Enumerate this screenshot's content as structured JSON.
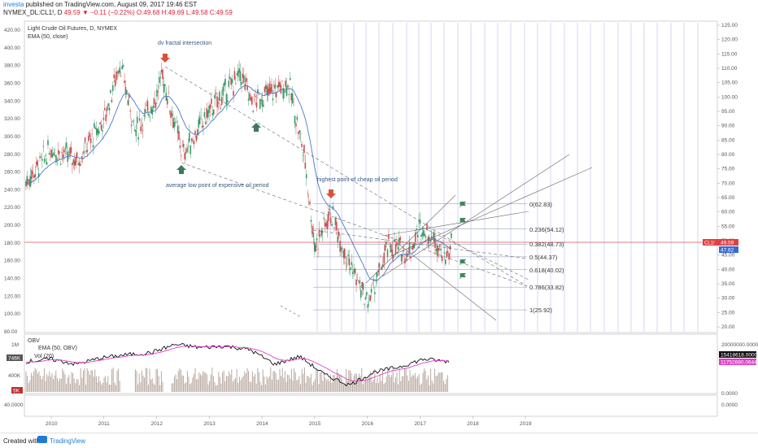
{
  "header": {
    "brand": "investa",
    "published": "published on TradingView.com, August 09, 2017 19:46 EST",
    "symbol": "NYMEX_DL:CL1!, D",
    "last": "49.59",
    "change": "−0.11 (−0.22%)",
    "ohlc": "O:49.68 H:49.69 L:49.58 C:49.59"
  },
  "legend": {
    "title": "Light Crude Oil Futures, D, NYMEX",
    "ema": "EMA (50, close)"
  },
  "obv_legend": {
    "title": "OBV",
    "ema": "EMA (50, OBV)",
    "vol": "Vol (20)"
  },
  "annotations": {
    "fractal": "dv fractal intersection",
    "avg_low": "average low point of expensive oil period",
    "high_cheap": "highest point of cheap oil period"
  },
  "fib_labels": [
    "0(62.83)",
    "0.236(54.12)",
    "0.382(48.73)",
    "0.5(44.37)",
    "0.618(40.02)",
    "0.786(33.82)",
    "1(25.92)"
  ],
  "price_badges": {
    "symbol": "CL1!",
    "last": "49.59",
    "ema": "47.62"
  },
  "obv_badges": {
    "obv": "15418618.0000",
    "ema": "11752680.0644"
  },
  "vol_badges": {
    "vol": "746K",
    "low": "5K"
  },
  "footer": {
    "created": "Created with",
    "brand": "TradingView"
  },
  "chart_data": [
    {
      "type": "line",
      "x": [
        "2009.5",
        "2010.0",
        "2010.5",
        "2011.0",
        "2011.3",
        "2011.6",
        "2012.0",
        "2012.1",
        "2012.5",
        "2013.0",
        "2013.6",
        "2013.8",
        "2014.2",
        "2014.5",
        "2014.8",
        "2015.0",
        "2015.3",
        "2015.6",
        "2016.0",
        "2016.4",
        "2016.8",
        "2017.0",
        "2017.3",
        "2017.5",
        "2017.6"
      ],
      "series": [
        {
          "values": [
            70,
            82,
            78,
            92,
            112,
            88,
            100,
            108,
            80,
            95,
            108,
            98,
            102,
            105,
            80,
            48,
            60,
            45,
            28,
            48,
            46,
            55,
            50,
            44,
            49.6
          ]
        }
      ],
      "left_axis": {
        "ticks": [
          80,
          100,
          120,
          140,
          160,
          180,
          200,
          220,
          240,
          260,
          280,
          300,
          320,
          340,
          360,
          380,
          400,
          420
        ]
      },
      "right_axis": {
        "ticks": [
          "125.00",
          "120.00",
          "115.00",
          "110.00",
          "105.00",
          "100.00",
          "95.00",
          "90.00",
          "85.00",
          "80.00",
          "75.00",
          "70.00",
          "65.00",
          "60.00",
          "55.00",
          "50.00",
          "45.00",
          "40.00",
          "35.00",
          "30.00",
          "25.00",
          "20.00"
        ]
      },
      "x_ticks": [
        "2010",
        "2011",
        "2012",
        "2013",
        "2014",
        "2015",
        "2016",
        "2017",
        "2018",
        "2019"
      ],
      "ylim": [
        20,
        125
      ]
    },
    {
      "type": "line",
      "series": [
        {
          "name": "OBV",
          "values": [
            0.55,
            0.6,
            0.5,
            0.62,
            0.68,
            0.72,
            0.88,
            0.82,
            0.85,
            0.78,
            0.5,
            0.65,
            0.3,
            0.1,
            0.35,
            0.45,
            0.6,
            0.55
          ]
        }
      ],
      "right_axis": {
        "ticks": [
          "20000000.0000",
          "0.0000"
        ]
      },
      "left_axis": {
        "ticks": [
          "1M",
          "400K"
        ]
      }
    }
  ]
}
